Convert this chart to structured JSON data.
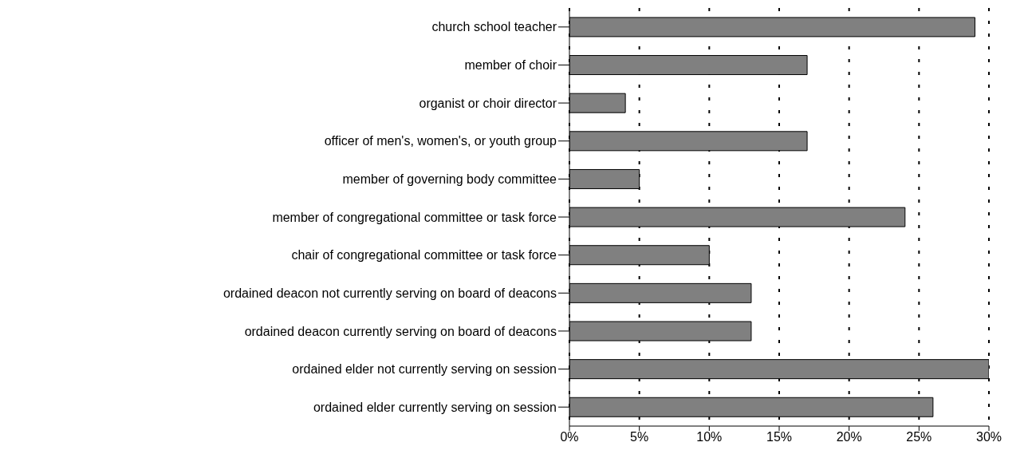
{
  "chart_data": {
    "type": "bar",
    "orientation": "horizontal",
    "categories": [
      "church school teacher",
      "member of choir",
      "organist or choir director",
      "officer of men's, women's, or youth group",
      "member of governing body committee",
      "member of congregational committee or task force",
      "chair of congregational committee or task force",
      "ordained deacon not currently serving on board of deacons",
      "ordained deacon currently serving on board of deacons",
      "ordained elder not currently serving on session",
      "ordained elder currently serving on session"
    ],
    "values": [
      29,
      17,
      4,
      17,
      5,
      24,
      10,
      13,
      13,
      30,
      26
    ],
    "color": "#808080",
    "xlim": [
      0,
      30
    ],
    "xticks": [
      {
        "value": 0,
        "label": "0%"
      },
      {
        "value": 5,
        "label": "5%"
      },
      {
        "value": 10,
        "label": "10%"
      },
      {
        "value": 15,
        "label": "15%"
      },
      {
        "value": 20,
        "label": "20%"
      },
      {
        "value": 25,
        "label": "25%"
      },
      {
        "value": 30,
        "label": "30%"
      }
    ],
    "grid": "x"
  }
}
